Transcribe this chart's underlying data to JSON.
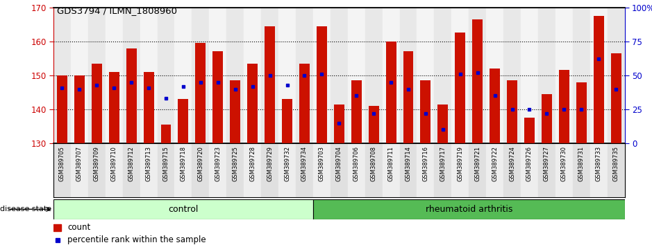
{
  "title": "GDS3794 / ILMN_1808960",
  "samples": [
    "GSM389705",
    "GSM389707",
    "GSM389709",
    "GSM389710",
    "GSM389712",
    "GSM389713",
    "GSM389715",
    "GSM389718",
    "GSM389720",
    "GSM389723",
    "GSM389725",
    "GSM389728",
    "GSM389729",
    "GSM389732",
    "GSM389734",
    "GSM389703",
    "GSM389704",
    "GSM389706",
    "GSM389708",
    "GSM389711",
    "GSM389714",
    "GSM389716",
    "GSM389717",
    "GSM389719",
    "GSM389721",
    "GSM389722",
    "GSM389724",
    "GSM389726",
    "GSM389727",
    "GSM389730",
    "GSM389731",
    "GSM389733",
    "GSM389735"
  ],
  "bar_heights": [
    150.0,
    150.0,
    153.5,
    151.0,
    158.0,
    151.0,
    135.5,
    143.0,
    159.5,
    157.0,
    148.5,
    153.5,
    164.5,
    143.0,
    153.5,
    164.5,
    141.5,
    148.5,
    141.0,
    160.0,
    157.0,
    148.5,
    141.5,
    162.5,
    166.5,
    152.0,
    148.5,
    137.5,
    144.5,
    151.5,
    148.0,
    167.5,
    156.5
  ],
  "percentile_values": [
    41,
    40,
    43,
    41,
    45,
    41,
    33,
    42,
    45,
    45,
    40,
    42,
    50,
    43,
    50,
    51,
    15,
    35,
    22,
    45,
    40,
    22,
    10,
    51,
    52,
    35,
    25,
    25,
    22,
    25,
    25,
    62,
    40
  ],
  "n_control": 15,
  "ymin": 130,
  "ymax": 170,
  "yticks_left": [
    130,
    140,
    150,
    160,
    170
  ],
  "yticks_right": [
    0,
    25,
    50,
    75,
    100
  ],
  "bar_color": "#CC1100",
  "dot_color": "#0000CC",
  "control_bg": "#CCFFCC",
  "ra_bg": "#55BB55",
  "plot_bg": "#FFFFFF",
  "left_axis_color": "#CC0000",
  "right_axis_color": "#0000CC"
}
